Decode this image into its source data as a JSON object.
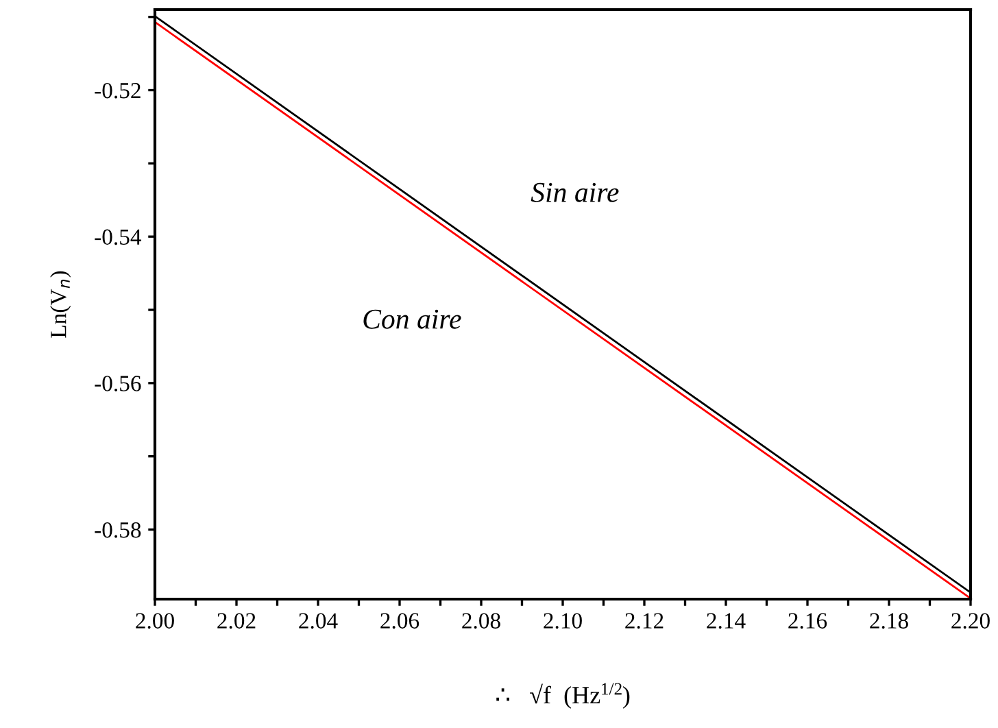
{
  "chart_data": {
    "type": "line",
    "xlabel": "∴   √f  (Hz$^{1/2}$)",
    "ylabel": "Ln(V$_{n}$)",
    "x": [
      2.0,
      2.2
    ],
    "series": [
      {
        "name": "Sin aire",
        "color": "#000000",
        "values": [
          -0.5099,
          -0.5886
        ]
      },
      {
        "name": "Con aire",
        "color": "#ff0000",
        "values": [
          -0.5107,
          -0.5894
        ]
      }
    ],
    "xlim": [
      2.0,
      2.2
    ],
    "ylim": [
      -0.5895,
      -0.509
    ],
    "xticks": [
      {
        "value": 2.0,
        "label": "2.00"
      },
      {
        "value": 2.01,
        "label": null
      },
      2.02,
      {
        "value": 2.03,
        "label": null
      },
      2.04,
      {
        "value": 2.05,
        "label": null
      },
      2.06,
      {
        "value": 2.07,
        "label": null
      },
      2.08,
      {
        "value": 2.09,
        "label": null
      },
      {
        "value": 2.1,
        "label": "2.10"
      },
      {
        "value": 2.11,
        "label": null
      },
      2.12,
      {
        "value": 2.13,
        "label": null
      },
      2.14,
      {
        "value": 2.15,
        "label": null
      },
      2.16,
      {
        "value": 2.17,
        "label": null
      },
      2.18,
      {
        "value": 2.19,
        "label": null
      },
      {
        "value": 2.2,
        "label": "2.20"
      }
    ],
    "yticks": [
      {
        "value": -0.51,
        "label": null
      },
      -0.52,
      {
        "value": -0.53,
        "label": null
      },
      -0.54,
      {
        "value": -0.55,
        "label": null
      },
      -0.56,
      {
        "value": -0.57,
        "label": null
      },
      -0.58
    ],
    "grid": false,
    "legend": false
  }
}
